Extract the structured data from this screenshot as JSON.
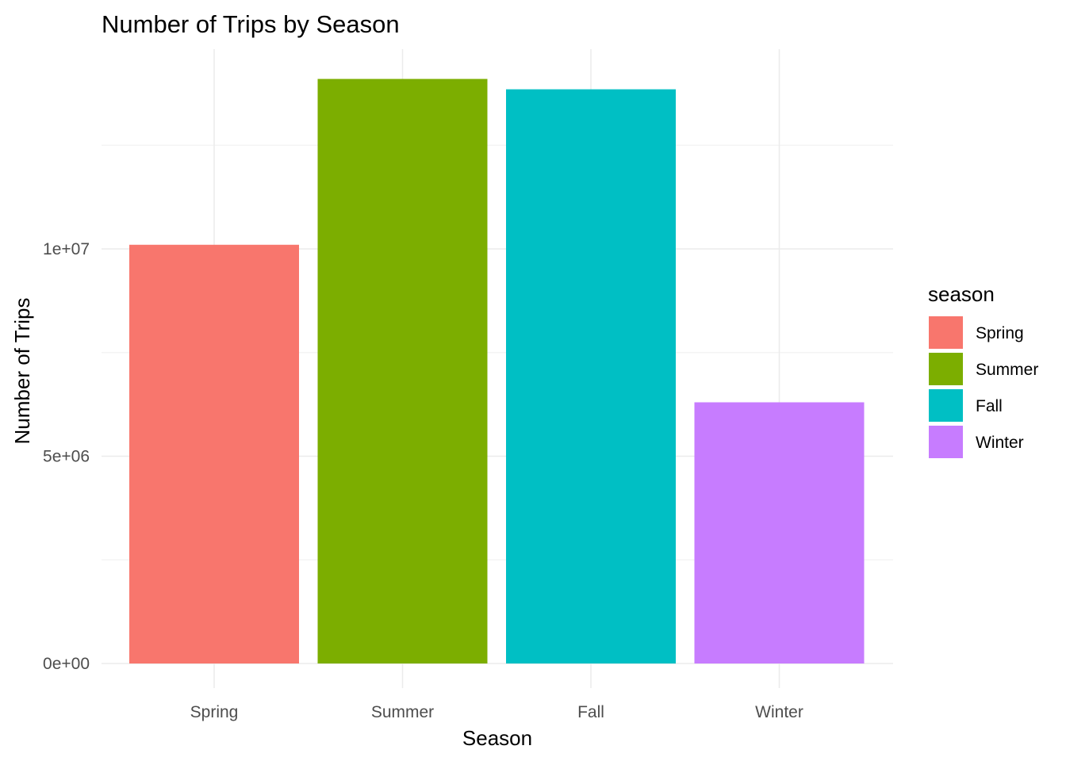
{
  "chart_data": {
    "type": "bar",
    "title": "Number of Trips by Season",
    "xlabel": "Season",
    "ylabel": "Number of Trips",
    "categories": [
      "Spring",
      "Summer",
      "Fall",
      "Winter"
    ],
    "values": [
      10100000,
      14100000,
      13850000,
      6300000
    ],
    "colors": [
      "#F8766D",
      "#7CAE00",
      "#00BFC4",
      "#C77CFF"
    ],
    "ylim": [
      0,
      14800000
    ],
    "y_ticks": [
      {
        "value": 0,
        "label": "0e+00"
      },
      {
        "value": 5000000,
        "label": "5e+06"
      },
      {
        "value": 10000000,
        "label": "1e+07"
      }
    ],
    "y_minor_ticks": [
      2500000,
      7500000,
      12500000
    ],
    "grid": true,
    "legend": {
      "title": "season",
      "position": "right",
      "entries": [
        "Spring",
        "Summer",
        "Fall",
        "Winter"
      ]
    }
  }
}
